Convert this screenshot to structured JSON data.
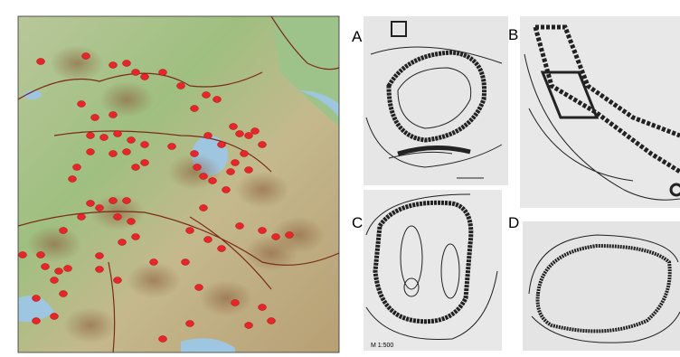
{
  "panels": [
    {
      "label": "A"
    },
    {
      "label": "B"
    },
    {
      "label": "C",
      "scale": "M 1:500"
    },
    {
      "label": "D"
    }
  ]
}
